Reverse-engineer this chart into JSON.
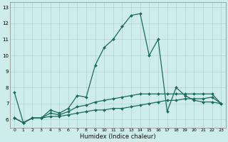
{
  "xlabel": "Humidex (Indice chaleur)",
  "x": [
    0,
    1,
    2,
    3,
    4,
    5,
    6,
    7,
    8,
    9,
    10,
    11,
    12,
    13,
    14,
    15,
    16,
    17,
    18,
    19,
    20,
    21,
    22,
    23
  ],
  "series_main": [
    7.7,
    5.8,
    6.1,
    6.1,
    6.6,
    6.4,
    6.7,
    7.5,
    7.4,
    9.4,
    10.5,
    11.0,
    11.8,
    12.5,
    12.6,
    10.0,
    11.0,
    6.5,
    8.0,
    7.5,
    7.2,
    7.1,
    7.1,
    7.0
  ],
  "series_upper_flat": [
    6.1,
    5.8,
    6.1,
    6.1,
    6.4,
    6.3,
    6.5,
    6.8,
    6.9,
    7.1,
    7.2,
    7.3,
    7.4,
    7.5,
    7.6,
    7.6,
    7.6,
    7.6,
    7.6,
    7.6,
    7.6,
    7.6,
    7.6,
    7.0
  ],
  "series_lower_flat": [
    6.1,
    5.8,
    6.1,
    6.1,
    6.2,
    6.2,
    6.3,
    6.4,
    6.5,
    6.6,
    6.6,
    6.7,
    6.7,
    6.8,
    6.9,
    7.0,
    7.1,
    7.2,
    7.2,
    7.3,
    7.3,
    7.3,
    7.4,
    7.0
  ],
  "bg_color": "#ceecea",
  "line_color": "#1a6b5a",
  "grid_color": "#aed4d0",
  "ylim": [
    5.5,
    13.3
  ],
  "yticks": [
    6,
    7,
    8,
    9,
    10,
    11,
    12,
    13
  ],
  "xticks": [
    0,
    1,
    2,
    3,
    4,
    5,
    6,
    7,
    8,
    9,
    10,
    11,
    12,
    13,
    14,
    15,
    16,
    17,
    18,
    19,
    20,
    21,
    22,
    23
  ]
}
